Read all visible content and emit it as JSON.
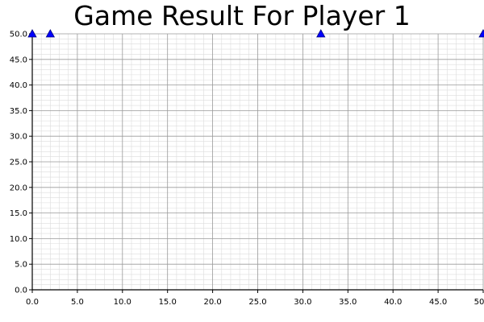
{
  "chart_data": {
    "type": "scatter",
    "title": "Game Result For Player 1",
    "xlabel": "",
    "ylabel": "",
    "xlim": [
      0,
      50
    ],
    "ylim": [
      0,
      50
    ],
    "x_ticks": [
      "0.0",
      "5.0",
      "10.0",
      "15.0",
      "20.0",
      "25.0",
      "30.0",
      "35.0",
      "40.0",
      "45.0",
      "50"
    ],
    "y_ticks": [
      "0.0",
      "5.0",
      "10.0",
      "15.0",
      "20.0",
      "25.0",
      "30.0",
      "35.0",
      "40.0",
      "45.0",
      "50.0"
    ],
    "grid": true,
    "minor_grid": true,
    "marker": "triangle",
    "marker_color": "#0000ff",
    "series": [
      {
        "points": [
          {
            "x": 0,
            "y": 50
          },
          {
            "x": 2,
            "y": 50
          },
          {
            "x": 32,
            "y": 50
          },
          {
            "x": 50,
            "y": 50
          }
        ]
      }
    ]
  }
}
